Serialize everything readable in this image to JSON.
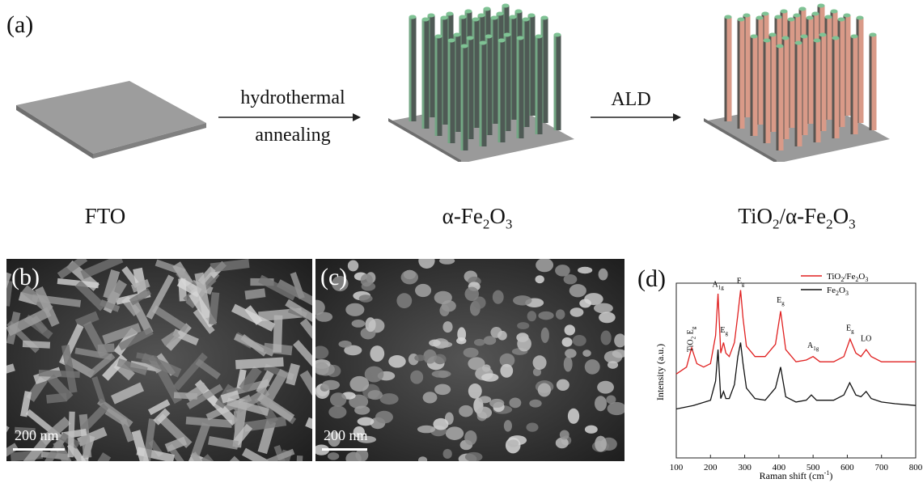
{
  "panel_a": {
    "label": "(a)",
    "steps": {
      "step1_line1": "hydrothermal",
      "step1_line2": "annealing",
      "step2": "ALD"
    },
    "labels": {
      "fto": "FTO",
      "fe2o3_prefix": "α-Fe",
      "fe2o3_sub1": "2",
      "fe2o3_mid": "O",
      "fe2o3_sub2": "3",
      "tio2_prefix": "TiO",
      "tio2_sub": "2",
      "tio2_rest": "/α-Fe",
      "tio2_sub3": "2",
      "tio2_mid": "O",
      "tio2_sub4": "3"
    },
    "colors": {
      "substrate": "#9a9a9a",
      "rod_fe2o3": "#4f5a55",
      "rod_tip_green": "#7fc294",
      "rod_tio2": "#d99a88"
    }
  },
  "panel_b": {
    "label": "(b)",
    "scalebar": "200 nm"
  },
  "panel_c": {
    "label": "(c)",
    "scalebar": "200 nm"
  },
  "panel_d": {
    "label": "(d)",
    "chart_data": {
      "type": "line",
      "xlabel": "Raman shift (cm-1)",
      "ylabel": "Intensity (a.u.)",
      "xlim": [
        100,
        800
      ],
      "x_ticks": [
        100,
        200,
        300,
        400,
        500,
        600,
        700,
        800
      ],
      "legend_position": "top-right",
      "series": [
        {
          "name": "TiO2/Fe2O3",
          "color": "#e02020",
          "x": [
            100,
            130,
            145,
            160,
            180,
            200,
            215,
            222,
            230,
            238,
            245,
            255,
            270,
            280,
            288,
            295,
            305,
            330,
            360,
            390,
            405,
            420,
            450,
            480,
            500,
            520,
            560,
            590,
            608,
            625,
            640,
            655,
            670,
            700,
            740,
            800
          ],
          "y": [
            0.48,
            0.52,
            0.63,
            0.54,
            0.52,
            0.54,
            0.7,
            0.94,
            0.6,
            0.66,
            0.6,
            0.58,
            0.66,
            0.82,
            0.96,
            0.8,
            0.64,
            0.58,
            0.58,
            0.65,
            0.84,
            0.62,
            0.55,
            0.56,
            0.58,
            0.55,
            0.55,
            0.58,
            0.68,
            0.6,
            0.58,
            0.62,
            0.58,
            0.55,
            0.55,
            0.55
          ]
        },
        {
          "name": "Fe2O3",
          "color": "#111111",
          "x": [
            100,
            150,
            200,
            215,
            222,
            230,
            238,
            245,
            255,
            270,
            280,
            288,
            295,
            305,
            330,
            360,
            390,
            405,
            420,
            450,
            480,
            495,
            510,
            560,
            590,
            607,
            625,
            640,
            655,
            670,
            700,
            740,
            800
          ],
          "y": [
            0.28,
            0.3,
            0.33,
            0.44,
            0.62,
            0.34,
            0.38,
            0.34,
            0.34,
            0.42,
            0.58,
            0.66,
            0.54,
            0.4,
            0.34,
            0.33,
            0.4,
            0.52,
            0.35,
            0.32,
            0.33,
            0.36,
            0.33,
            0.33,
            0.36,
            0.43,
            0.36,
            0.35,
            0.38,
            0.34,
            0.32,
            0.31,
            0.3
          ]
        }
      ],
      "annotations": [
        {
          "text": "TiO",
          "sub": "2",
          "after": " E",
          "sub2": "g",
          "x": 148,
          "y": 0.66,
          "rotate": true
        },
        {
          "text": "A",
          "sub": "1g",
          "x": 222,
          "y": 0.96
        },
        {
          "text": "E",
          "sub": "g",
          "x": 240,
          "y": 0.7
        },
        {
          "text": "E",
          "sub": "g",
          "x": 288,
          "y": 0.98
        },
        {
          "text": "E",
          "sub": "g",
          "x": 405,
          "y": 0.87
        },
        {
          "text": "A",
          "sub": "1g",
          "x": 500,
          "y": 0.61
        },
        {
          "text": "E",
          "sub": "g",
          "x": 608,
          "y": 0.71
        },
        {
          "text": "LO",
          "sub": "",
          "x": 655,
          "y": 0.65
        }
      ]
    }
  }
}
